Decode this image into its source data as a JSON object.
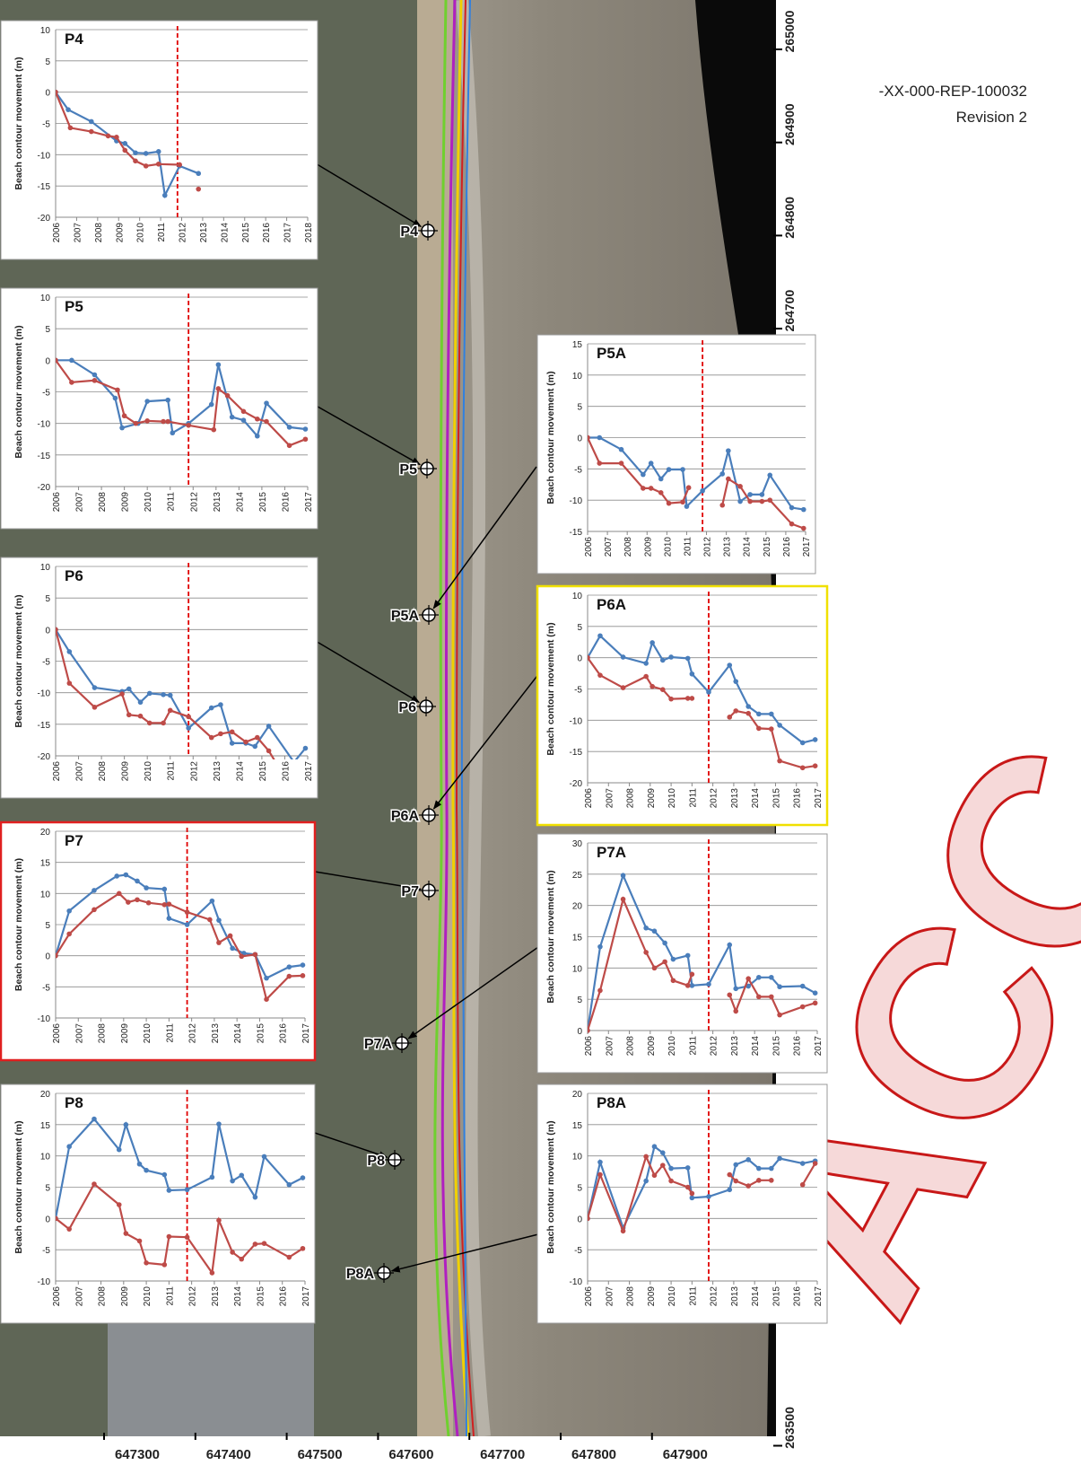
{
  "header": {
    "document_id": "-XX-000-REP-100032",
    "revision": "Revision 2"
  },
  "watermark": "ACC",
  "map": {
    "points": [
      "P4",
      "P5",
      "P5A",
      "P6",
      "P6A",
      "P7",
      "P7A",
      "P8",
      "P8A"
    ],
    "easting_ticks": [
      647300,
      647400,
      647500,
      647600,
      647700,
      647800,
      647900
    ],
    "northing_ticks": [
      265000,
      264900,
      264800,
      264700,
      263500
    ]
  },
  "chart_data": [
    {
      "type": "line",
      "title": "P4",
      "y_label": "Beach contour movement (m)",
      "frame_color": "#999999",
      "reference_line_x": 2011.8,
      "reference_color": "#e00000",
      "xlim": [
        2006,
        2018
      ],
      "xticks": [
        2006,
        2007,
        2008,
        2009,
        2010,
        2011,
        2012,
        2013,
        2014,
        2015,
        2016,
        2017,
        2018
      ],
      "ylim": [
        -20,
        10
      ],
      "yticks": [
        -20,
        -15,
        -10,
        -5,
        0,
        5,
        10
      ],
      "grid": true,
      "series": [
        {
          "color": "#4a7ebb",
          "x": [
            2006,
            2006.6,
            2007.7,
            2008.9,
            2009.3,
            2009.8,
            2010.3,
            2010.9,
            2011.2,
            2011.9,
            2012.8
          ],
          "values": [
            0,
            -2.8,
            -4.7,
            -7.8,
            -8.2,
            -9.7,
            -9.8,
            -9.5,
            -16.5,
            -11.8,
            -13
          ]
        },
        {
          "color": "#be4b48",
          "x": [
            2006,
            2006.7,
            2007.7,
            2008.5,
            2008.9,
            2009.3,
            2009.8,
            2010.3,
            2010.9,
            2011.9,
            2012.3,
            2012.8
          ],
          "values": [
            0,
            -5.7,
            -6.3,
            -7,
            -7.2,
            -9.3,
            -11,
            -11.8,
            -11.5,
            -11.6,
            null,
            -15.5
          ]
        }
      ]
    },
    {
      "type": "line",
      "title": "P5",
      "y_label": "Beach contour movement (m)",
      "frame_color": "#999999",
      "reference_line_x": 2011.8,
      "reference_color": "#e00000",
      "xlim": [
        2006,
        2017
      ],
      "xticks": [
        2006,
        2007,
        2008,
        2009,
        2010,
        2011,
        2012,
        2013,
        2014,
        2015,
        2016,
        2017
      ],
      "ylim": [
        -20,
        10
      ],
      "yticks": [
        -20,
        -15,
        -10,
        -5,
        0,
        5,
        10
      ],
      "grid": true,
      "series": [
        {
          "color": "#4a7ebb",
          "x": [
            2006,
            2006.7,
            2007.7,
            2008.6,
            2008.9,
            2009.6,
            2010,
            2010.9,
            2011.1,
            2011.8,
            2012.8,
            2013.1,
            2013.7,
            2014.2,
            2014.8,
            2015.2,
            2016.2,
            2016.9
          ],
          "values": [
            0,
            0,
            -2.3,
            -6,
            -10.7,
            -10,
            -6.5,
            -6.3,
            -11.5,
            -10,
            -7,
            -0.7,
            -9,
            -9.5,
            -12,
            -6.8,
            -10.6,
            -10.9
          ]
        },
        {
          "color": "#be4b48",
          "x": [
            2006,
            2006.7,
            2007.7,
            2008.7,
            2009,
            2009.5,
            2010,
            2010.7,
            2010.9,
            2011.8,
            2012.9,
            2013.1,
            2013.5,
            2014.2,
            2014.8,
            2015.2,
            2016.2,
            2016.9
          ],
          "values": [
            0,
            -3.5,
            -3.2,
            -4.7,
            -8.8,
            -10,
            -9.6,
            -9.7,
            -9.7,
            -10.3,
            -11,
            -4.5,
            -5.6,
            -8.1,
            -9.3,
            -9.7,
            -13.5,
            -12.5
          ]
        }
      ]
    },
    {
      "type": "line",
      "title": "P6",
      "y_label": "Beach contour movement (m)",
      "frame_color": "#999999",
      "reference_line_x": 2011.8,
      "reference_color": "#e00000",
      "xlim": [
        2006,
        2017
      ],
      "xticks": [
        2006,
        2007,
        2008,
        2009,
        2010,
        2011,
        2012,
        2013,
        2014,
        2015,
        2016,
        2017
      ],
      "ylim": [
        -20,
        10
      ],
      "yticks": [
        -20,
        -15,
        -10,
        -5,
        0,
        5,
        10
      ],
      "grid": true,
      "series": [
        {
          "color": "#4a7ebb",
          "x": [
            2006,
            2006.6,
            2007.7,
            2008.9,
            2009.2,
            2009.7,
            2010.1,
            2010.7,
            2011,
            2011.8,
            2012.8,
            2013.2,
            2013.7,
            2014.3,
            2014.7,
            2015.3,
            2016.4,
            2016.9
          ],
          "values": [
            0,
            -3.5,
            -9.2,
            -9.8,
            -9.4,
            -11.5,
            -10.1,
            -10.3,
            -10.4,
            -15.6,
            -12.4,
            -11.9,
            -18,
            -18,
            -18.5,
            -15.3,
            -21,
            -18.8
          ]
        },
        {
          "color": "#be4b48",
          "x": [
            2006,
            2006.6,
            2007.7,
            2008.9,
            2009.2,
            2009.7,
            2010.1,
            2010.7,
            2011,
            2011.8,
            2012.8,
            2013.2,
            2013.7,
            2014.3,
            2014.8,
            2015.3,
            2015.6
          ],
          "values": [
            0,
            -8.5,
            -12.3,
            -10.2,
            -13.5,
            -13.7,
            -14.8,
            -14.8,
            -12.8,
            -13.8,
            -17.1,
            -16.5,
            -16.2,
            -17.8,
            -17.1,
            -19.2,
            -21
          ]
        }
      ]
    },
    {
      "type": "line",
      "title": "P7",
      "y_label": "Beach contour movement (m)",
      "frame_color": "#e02020",
      "reference_line_x": 2011.8,
      "reference_color": "#e00000",
      "xlim": [
        2006,
        2017
      ],
      "xticks": [
        2006,
        2007,
        2008,
        2009,
        2010,
        2011,
        2012,
        2013,
        2014,
        2015,
        2016,
        2017
      ],
      "ylim": [
        -10,
        20
      ],
      "yticks": [
        -10,
        -5,
        0,
        5,
        10,
        15,
        20
      ],
      "grid": true,
      "series": [
        {
          "color": "#4a7ebb",
          "x": [
            2006,
            2006.6,
            2007.7,
            2008.7,
            2009.1,
            2009.6,
            2010,
            2010.8,
            2011,
            2011.8,
            2012.9,
            2013.2,
            2013.8,
            2014.3,
            2014.8,
            2015.3,
            2016.3,
            2016.9
          ],
          "values": [
            0,
            7.2,
            10.5,
            12.8,
            13,
            12,
            10.9,
            10.7,
            6,
            5,
            8.8,
            5.7,
            1.2,
            0.4,
            0.2,
            -3.6,
            -1.8,
            -1.5
          ]
        },
        {
          "color": "#be4b48",
          "x": [
            2006,
            2006.6,
            2007.7,
            2008.8,
            2009.2,
            2009.6,
            2010.1,
            2010.8,
            2011,
            2011.8,
            2012.8,
            2013.2,
            2013.7,
            2014.2,
            2014.8,
            2015.3,
            2016.3,
            2016.9
          ],
          "values": [
            0,
            3.5,
            7.4,
            10,
            8.6,
            9,
            8.5,
            8.2,
            8.3,
            7,
            5.8,
            2.1,
            3.2,
            -0.1,
            0.2,
            -7,
            -3.3,
            -3.2
          ]
        }
      ]
    },
    {
      "type": "line",
      "title": "P8",
      "y_label": "Beach contour movement (m)",
      "frame_color": "#999999",
      "reference_line_x": 2011.8,
      "reference_color": "#e00000",
      "xlim": [
        2006,
        2017
      ],
      "xticks": [
        2006,
        2007,
        2008,
        2009,
        2010,
        2011,
        2012,
        2013,
        2014,
        2015,
        2016,
        2017
      ],
      "ylim": [
        -10,
        20
      ],
      "yticks": [
        -10,
        -5,
        0,
        5,
        10,
        15,
        20
      ],
      "grid": true,
      "series": [
        {
          "color": "#4a7ebb",
          "x": [
            2006,
            2006.6,
            2007.7,
            2008.8,
            2009.1,
            2009.7,
            2010,
            2010.8,
            2011,
            2011.8,
            2012.9,
            2013.2,
            2013.8,
            2014.2,
            2014.8,
            2015.2,
            2016.3,
            2016.9
          ],
          "values": [
            0,
            11.5,
            15.9,
            11,
            15,
            8.7,
            7.7,
            7,
            4.5,
            4.6,
            6.6,
            15.1,
            6,
            6.9,
            3.4,
            9.9,
            5.4,
            6.5
          ]
        },
        {
          "color": "#be4b48",
          "x": [
            2006,
            2006.6,
            2007.7,
            2008.8,
            2009.1,
            2009.7,
            2010,
            2010.8,
            2011,
            2011.8,
            2012.9,
            2013.2,
            2013.8,
            2014.2,
            2014.8,
            2015.2,
            2016.3,
            2016.9
          ],
          "values": [
            0,
            -1.7,
            5.5,
            2.2,
            -2.4,
            -3.6,
            -7.1,
            -7.4,
            -2.9,
            -3,
            -8.7,
            -0.3,
            -5.4,
            -6.5,
            -4.1,
            -4,
            -6.2,
            -4.8
          ]
        }
      ]
    },
    {
      "type": "line",
      "title": "P5A",
      "y_label": "Beach contour movement (m)",
      "frame_color": "#999999",
      "reference_line_x": 2011.8,
      "reference_color": "#e00000",
      "xlim": [
        2006,
        2017
      ],
      "xticks": [
        2006,
        2007,
        2008,
        2009,
        2010,
        2011,
        2012,
        2013,
        2014,
        2015,
        2016,
        2017
      ],
      "ylim": [
        -15,
        15
      ],
      "yticks": [
        -15,
        -10,
        -5,
        0,
        5,
        10,
        15
      ],
      "grid": true,
      "series": [
        {
          "color": "#4a7ebb",
          "x": [
            2006,
            2006.6,
            2007.7,
            2008.8,
            2009.2,
            2009.7,
            2010.1,
            2010.8,
            2011,
            2011.8,
            2012.8,
            2013.1,
            2013.7,
            2014.2,
            2014.8,
            2015.2,
            2016.3,
            2016.9
          ],
          "values": [
            0,
            0,
            -1.9,
            -5.9,
            -4.1,
            -6.6,
            -5.1,
            -5.1,
            -11,
            -8.5,
            -5.8,
            -2.1,
            -10.2,
            -9.1,
            -9.1,
            -6,
            -11.2,
            -11.5
          ]
        },
        {
          "color": "#be4b48",
          "x": [
            2006,
            2006.6,
            2007.7,
            2008.8,
            2009.2,
            2009.7,
            2010.1,
            2010.8,
            2011.1,
            2012,
            2012.8,
            2013.1,
            2013.7,
            2014.2,
            2014.8,
            2015.2,
            2016.3,
            2016.9
          ],
          "values": [
            0,
            -4.1,
            -4.1,
            -8.1,
            -8.1,
            -8.8,
            -10.5,
            -10.3,
            -8,
            null,
            -10.8,
            -6.6,
            -7.8,
            -10.2,
            -10.2,
            -10,
            -13.8,
            -14.5
          ]
        }
      ]
    },
    {
      "type": "line",
      "title": "P6A",
      "y_label": "Beach contour movement (m)",
      "frame_color": "#f0e000",
      "reference_line_x": 2011.8,
      "reference_color": "#e00000",
      "xlim": [
        2006,
        2017
      ],
      "xticks": [
        2006,
        2007,
        2008,
        2009,
        2010,
        2011,
        2012,
        2013,
        2014,
        2015,
        2016,
        2017
      ],
      "ylim": [
        -20,
        10
      ],
      "yticks": [
        -20,
        -15,
        -10,
        -5,
        0,
        5,
        10
      ],
      "grid": true,
      "series": [
        {
          "color": "#4a7ebb",
          "x": [
            2006,
            2006.6,
            2007.7,
            2008.8,
            2009.1,
            2009.6,
            2010,
            2010.8,
            2011,
            2011.8,
            2012.8,
            2013.1,
            2013.7,
            2014.2,
            2014.8,
            2015.2,
            2016.3,
            2016.9
          ],
          "values": [
            0,
            3.5,
            0.1,
            -0.9,
            2.4,
            -0.4,
            0.1,
            -0.1,
            -2.6,
            -5.5,
            -1.2,
            -3.8,
            -7.8,
            -9,
            -9,
            -10.8,
            -13.6,
            -13.1
          ]
        },
        {
          "color": "#be4b48",
          "x": [
            2006,
            2006.6,
            2007.7,
            2008.8,
            2009.1,
            2009.6,
            2010,
            2010.8,
            2011,
            2012,
            2012.8,
            2013.1,
            2013.7,
            2014.2,
            2014.8,
            2015.2,
            2016.3,
            2016.9
          ],
          "values": [
            0,
            -2.8,
            -4.8,
            -3,
            -4.6,
            -5.1,
            -6.6,
            -6.5,
            -6.5,
            null,
            -9.5,
            -8.5,
            -8.9,
            -11.3,
            -11.4,
            -16.5,
            -17.6,
            -17.3
          ]
        }
      ]
    },
    {
      "type": "line",
      "title": "P7A",
      "y_label": "Beach contour movement (m)",
      "frame_color": "#999999",
      "reference_line_x": 2011.8,
      "reference_color": "#e00000",
      "xlim": [
        2006,
        2017
      ],
      "xticks": [
        2006,
        2007,
        2008,
        2009,
        2010,
        2011,
        2012,
        2013,
        2014,
        2015,
        2016,
        2017
      ],
      "ylim": [
        0,
        30
      ],
      "yticks": [
        0,
        5,
        10,
        15,
        20,
        25,
        30
      ],
      "grid": true,
      "series": [
        {
          "color": "#4a7ebb",
          "x": [
            2006,
            2006.6,
            2007.7,
            2008.8,
            2009.2,
            2009.7,
            2010.1,
            2010.8,
            2011,
            2011.8,
            2012.8,
            2013.1,
            2013.7,
            2014.2,
            2014.8,
            2015.2,
            2016.3,
            2016.9
          ],
          "values": [
            0,
            13.4,
            24.8,
            16.4,
            15.9,
            14,
            11.4,
            12,
            7.2,
            7.4,
            13.7,
            6.7,
            7.1,
            8.5,
            8.5,
            7,
            7.1,
            6
          ]
        },
        {
          "color": "#be4b48",
          "x": [
            2006,
            2006.6,
            2007.7,
            2008.8,
            2009.2,
            2009.7,
            2010.1,
            2010.8,
            2011,
            2012,
            2012.8,
            2013.1,
            2013.7,
            2014.2,
            2014.8,
            2015.2,
            2016.3,
            2016.9
          ],
          "values": [
            0,
            6.4,
            21,
            12.5,
            10,
            11,
            8,
            7.2,
            9,
            null,
            5.7,
            3.1,
            8.3,
            5.4,
            5.4,
            2.5,
            3.8,
            4.4
          ]
        }
      ]
    },
    {
      "type": "line",
      "title": "P8A",
      "y_label": "Beach contour movement (m)",
      "frame_color": "#999999",
      "reference_line_x": 2011.8,
      "reference_color": "#e00000",
      "xlim": [
        2006,
        2017
      ],
      "xticks": [
        2006,
        2007,
        2008,
        2009,
        2010,
        2011,
        2012,
        2013,
        2014,
        2015,
        2016,
        2017
      ],
      "ylim": [
        -10,
        20
      ],
      "yticks": [
        -10,
        -5,
        0,
        5,
        10,
        15,
        20
      ],
      "grid": true,
      "series": [
        {
          "color": "#4a7ebb",
          "x": [
            2006,
            2006.6,
            2007.7,
            2008.8,
            2009.2,
            2009.6,
            2010,
            2010.8,
            2011,
            2011.8,
            2012.8,
            2013.1,
            2013.7,
            2014.2,
            2014.8,
            2015.2,
            2016.3,
            2016.9
          ],
          "values": [
            0,
            9,
            -1.5,
            6,
            11.5,
            10.5,
            8,
            8.1,
            3.3,
            3.5,
            4.6,
            8.6,
            9.4,
            8,
            8,
            9.6,
            8.8,
            9.2
          ]
        },
        {
          "color": "#be4b48",
          "x": [
            2006,
            2006.6,
            2007.7,
            2008.8,
            2009.2,
            2009.6,
            2010,
            2010.8,
            2011,
            2012,
            2012.8,
            2013.1,
            2013.7,
            2014.2,
            2014.8,
            2015.5,
            2016.3,
            2016.9
          ],
          "values": [
            0,
            7,
            -2,
            9.9,
            6.9,
            8.5,
            6,
            5,
            4,
            null,
            7,
            6,
            5.2,
            6.1,
            6.1,
            null,
            5.4,
            8.8
          ]
        }
      ]
    }
  ]
}
